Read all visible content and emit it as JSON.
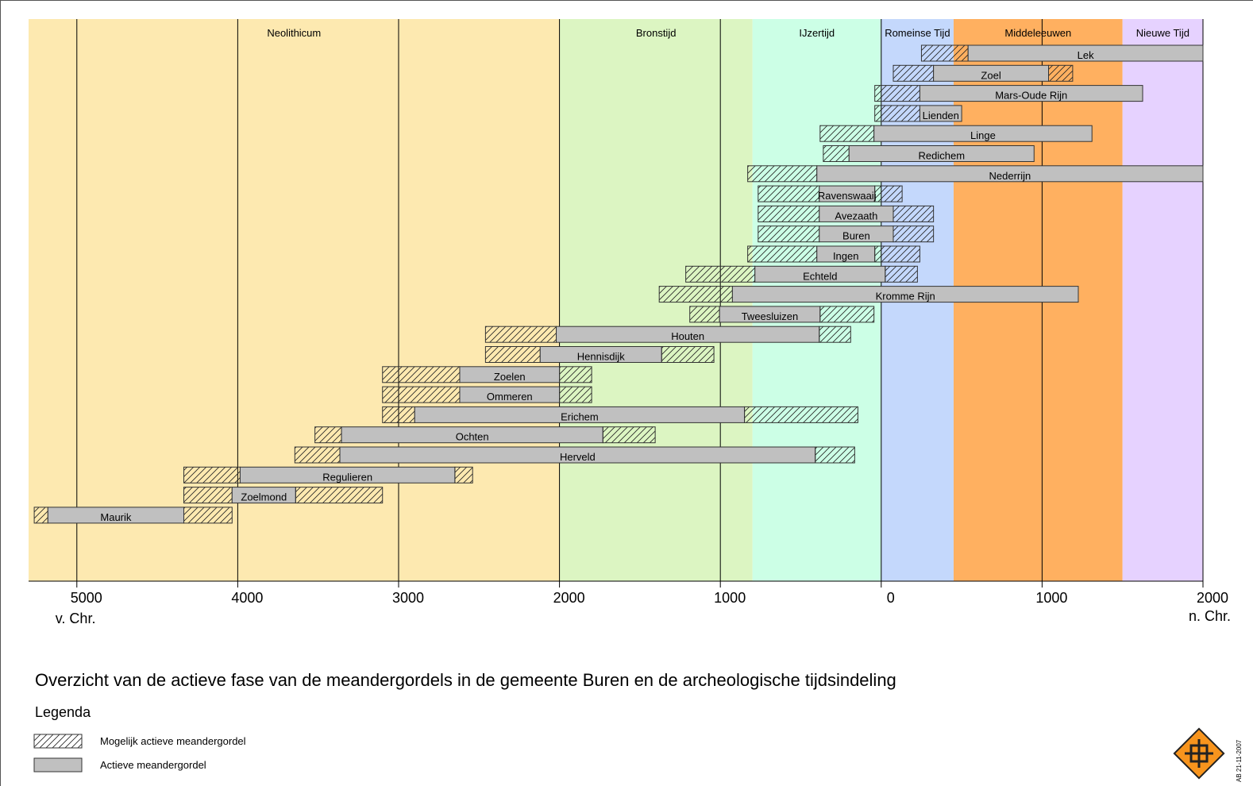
{
  "chart_data": {
    "type": "timeline",
    "xlim": [
      -5300,
      2000
    ],
    "xticks": [
      {
        "value": -5000,
        "label": "5000"
      },
      {
        "value": -4000,
        "label": "4000"
      },
      {
        "value": -3000,
        "label": "3000"
      },
      {
        "value": -2000,
        "label": "2000"
      },
      {
        "value": -1000,
        "label": "1000"
      },
      0,
      1000,
      2000
    ],
    "left_unit": "v. Chr.",
    "right_unit": "n. Chr.",
    "periods": [
      {
        "name": "Neolithicum",
        "start": -5300,
        "end": -2000,
        "color": "#fde9b0"
      },
      {
        "name": "Bronstijd",
        "start": -2000,
        "end": -800,
        "color": "#dcf5c2"
      },
      {
        "name": "IJzertijd",
        "start": -800,
        "end": 0,
        "color": "#ccffe6"
      },
      {
        "name": "Romeinse Tijd",
        "start": 0,
        "end": 450,
        "color": "#c4d8fc"
      },
      {
        "name": "Middeleeuwen",
        "start": 450,
        "end": 1500,
        "color": "#ffb060"
      },
      {
        "name": "Nieuwe Tijd",
        "start": 1500,
        "end": 2000,
        "color": "#e6d2ff"
      }
    ],
    "bars": [
      {
        "label": "Lek",
        "possible_start": 250,
        "active_start": 540,
        "active_end": 2000,
        "possible_end": null
      },
      {
        "label": "Zoel",
        "possible_start": 75,
        "active_start": 325,
        "active_end": 1040,
        "possible_end": 1190
      },
      {
        "label": "Mars-Oude Rijn",
        "possible_start": -40,
        "active_start": 240,
        "active_end": 1625,
        "possible_end": null
      },
      {
        "label": "Lienden",
        "possible_start": -40,
        "active_start": 240,
        "active_end": 500,
        "possible_end": null
      },
      {
        "label": "Linge",
        "possible_start": -380,
        "active_start": -45,
        "active_end": 1310,
        "possible_end": null
      },
      {
        "label": "Redichem",
        "possible_start": -360,
        "active_start": -200,
        "active_end": 950,
        "possible_end": null
      },
      {
        "label": "Nederrijn",
        "possible_start": -830,
        "active_start": -400,
        "active_end": 2000,
        "possible_end": null
      },
      {
        "label": "Ravenswaaij",
        "possible_start": -765,
        "active_start": -385,
        "active_end": -40,
        "possible_end": 130
      },
      {
        "label": "Avezaath",
        "possible_start": -765,
        "active_start": -385,
        "active_end": 75,
        "possible_end": 325
      },
      {
        "label": "Buren",
        "possible_start": -765,
        "active_start": -385,
        "active_end": 75,
        "possible_end": 325
      },
      {
        "label": "Ingen",
        "possible_start": -830,
        "active_start": -400,
        "active_end": -40,
        "possible_end": 240
      },
      {
        "label": "Echteld",
        "possible_start": -1215,
        "active_start": -785,
        "active_end": 25,
        "possible_end": 225
      },
      {
        "label": "Kromme Rijn",
        "possible_start": -1380,
        "active_start": -925,
        "active_end": 1225,
        "possible_end": null
      },
      {
        "label": "Tweesluizen",
        "possible_start": -1190,
        "active_start": -1005,
        "active_end": -380,
        "possible_end": -45
      },
      {
        "label": "Houten",
        "possible_start": -2460,
        "active_start": -2020,
        "active_end": -385,
        "possible_end": -190
      },
      {
        "label": "Hennisdijk",
        "possible_start": -2460,
        "active_start": -2120,
        "active_end": -1365,
        "possible_end": -1040
      },
      {
        "label": "Zoelen",
        "possible_start": -3100,
        "active_start": -2620,
        "active_end": -2000,
        "possible_end": -1800
      },
      {
        "label": "Ommeren",
        "possible_start": -3100,
        "active_start": -2620,
        "active_end": -2000,
        "possible_end": -1800
      },
      {
        "label": "Erichem",
        "possible_start": -3100,
        "active_start": -2900,
        "active_end": -850,
        "possible_end": -145
      },
      {
        "label": "Ochten",
        "possible_start": -3520,
        "active_start": -3355,
        "active_end": -1730,
        "possible_end": -1405
      },
      {
        "label": "Herveld",
        "possible_start": -3645,
        "active_start": -3365,
        "active_end": -410,
        "possible_end": -165
      },
      {
        "label": "Regulieren",
        "possible_start": -4335,
        "active_start": -3985,
        "active_end": -2650,
        "possible_end": -2540
      },
      {
        "label": "Zoelmond",
        "possible_start": -4335,
        "active_start": -4035,
        "active_end": -3640,
        "possible_end": -3100
      },
      {
        "label": "Maurik",
        "possible_start": -5265,
        "active_start": -5180,
        "active_end": -4335,
        "possible_end": -4035
      }
    ],
    "title": "Overzicht van de actieve fase van de meandergordels in de gemeente Buren en de archeologische tijdsindeling",
    "legend_title": "Legenda",
    "legend": [
      "Mogelijk actieve meandergordel",
      "Actieve meandergordel"
    ],
    "active_color": "#c0c0c0",
    "stamp": "AB 21-11-2007"
  }
}
